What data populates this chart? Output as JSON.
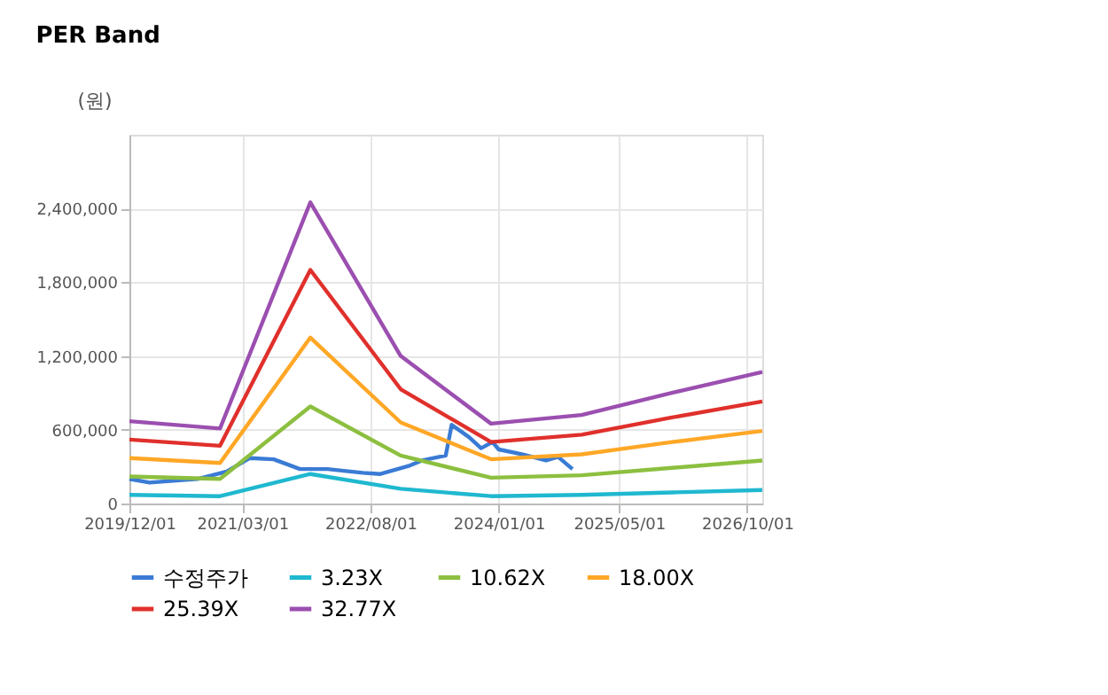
{
  "chart_data": {
    "type": "line",
    "title": "PER Band",
    "ylabel": "(원)",
    "xlim": [
      "2019-12-01",
      "2026-12-01"
    ],
    "xticks": [
      {
        "value": "2019-12-01",
        "label": "2019/12/01"
      },
      {
        "value": "2021-03-01",
        "label": "2021/03/01"
      },
      {
        "value": "2022-08-01",
        "label": "2022/08/01"
      },
      {
        "value": "2024-01-01",
        "label": "2024/01/01"
      },
      {
        "value": "2025-05-01",
        "label": "2025/05/01"
      },
      {
        "value": "2026-10-01",
        "label": "2026/10/01"
      }
    ],
    "ylim": [
      0,
      3000000
    ],
    "yticks": [
      {
        "value": 0,
        "label": "0"
      },
      {
        "value": 600000,
        "label": "600,000"
      },
      {
        "value": 1200000,
        "label": "1,200,000"
      },
      {
        "value": 1800000,
        "label": "1,800,000"
      },
      {
        "value": 2400000,
        "label": "2,400,000"
      }
    ],
    "grid": true,
    "legend": "bottom",
    "line_style": "solid",
    "marker": "none",
    "x": [
      "2019-12-01",
      "2020-12-01",
      "2021-12-01",
      "2022-12-01",
      "2023-12-01",
      "2024-12-01",
      "2025-12-01",
      "2026-12-01"
    ],
    "series": [
      {
        "name": "수정주가",
        "color": "#3a7bd5",
        "x": [
          "2019-12-01",
          "2020-02-20",
          "2020-09-01",
          "2020-12-28",
          "2021-04-01",
          "2021-07-06",
          "2021-10-20",
          "2022-02-08",
          "2022-07-01",
          "2022-09-10",
          "2023-01-08",
          "2023-02-25",
          "2023-06-01",
          "2023-06-25",
          "2023-09-03",
          "2023-10-22",
          "2023-12-07",
          "2024-01-01",
          "2024-04-07",
          "2024-07-10",
          "2024-08-28",
          "2024-10-25"
        ],
        "values": [
          200000,
          170000,
          200000,
          260000,
          370000,
          360000,
          280000,
          280000,
          250000,
          240000,
          310000,
          350000,
          390000,
          640000,
          540000,
          450000,
          500000,
          440000,
          400000,
          350000,
          380000,
          280000
        ]
      },
      {
        "name": "3.23X",
        "color": "#1fb8d0",
        "values": [
          70000,
          60000,
          240000,
          120000,
          60000,
          70000,
          90000,
          110000
        ]
      },
      {
        "name": "10.62X",
        "color": "#8cbf3f",
        "values": [
          220000,
          200000,
          790000,
          390000,
          210000,
          230000,
          290000,
          350000
        ]
      },
      {
        "name": "18.00X",
        "color": "#ffa726",
        "values": [
          370000,
          330000,
          1350000,
          660000,
          360000,
          400000,
          500000,
          590000
        ]
      },
      {
        "name": "25.39X",
        "color": "#e0302c",
        "values": [
          520000,
          470000,
          1900000,
          930000,
          500000,
          560000,
          700000,
          830000
        ]
      },
      {
        "name": "32.77X",
        "color": "#9b4fb0",
        "values": [
          670000,
          610000,
          2450000,
          1200000,
          650000,
          720000,
          900000,
          1070000
        ]
      }
    ]
  }
}
